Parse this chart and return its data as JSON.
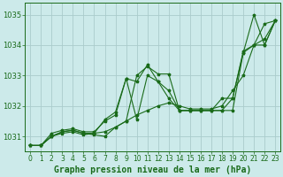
{
  "title": "Graphe pression niveau de la mer (hPa)",
  "xlim": [
    -0.5,
    23.5
  ],
  "ylim": [
    1030.5,
    1035.4
  ],
  "yticks": [
    1031,
    1032,
    1033,
    1034,
    1035
  ],
  "xticks": [
    0,
    1,
    2,
    3,
    4,
    5,
    6,
    7,
    8,
    9,
    10,
    11,
    12,
    13,
    14,
    15,
    16,
    17,
    18,
    19,
    20,
    21,
    22,
    23
  ],
  "background_color": "#cceaea",
  "grid_color": "#aacccc",
  "line_color": "#1a6b1a",
  "series1_x": [
    0,
    1,
    2,
    3,
    4,
    5,
    6,
    7,
    8,
    9,
    10,
    11,
    12,
    13,
    14,
    15,
    16,
    17,
    18,
    19,
    20,
    21,
    22,
    23
  ],
  "series1_y": [
    1030.7,
    1030.7,
    1031.0,
    1031.1,
    1031.15,
    1031.05,
    1031.1,
    1031.15,
    1031.3,
    1031.5,
    1031.7,
    1031.85,
    1032.0,
    1032.1,
    1032.0,
    1031.9,
    1031.9,
    1031.9,
    1032.0,
    1032.5,
    1033.0,
    1034.0,
    1034.7,
    1034.8
  ],
  "series2_x": [
    0,
    1,
    2,
    3,
    4,
    5,
    6,
    7,
    8,
    9,
    10,
    11,
    12,
    13,
    14,
    15,
    16,
    17,
    18,
    19,
    20,
    21,
    22,
    23
  ],
  "series2_y": [
    1030.7,
    1030.7,
    1031.0,
    1031.15,
    1031.2,
    1031.1,
    1031.1,
    1031.55,
    1031.8,
    1032.9,
    1032.8,
    1033.35,
    1032.8,
    1032.5,
    1031.85,
    1031.85,
    1031.85,
    1031.85,
    1031.85,
    1032.25,
    1033.75,
    1035.0,
    1034.0,
    1034.8
  ],
  "series3_x": [
    0,
    1,
    2,
    3,
    4,
    5,
    6,
    7,
    8,
    9,
    10,
    11,
    12,
    13,
    14,
    15,
    16,
    17,
    18,
    19,
    20,
    21,
    22,
    23
  ],
  "series3_y": [
    1030.7,
    1030.7,
    1031.0,
    1031.15,
    1031.2,
    1031.1,
    1031.05,
    1031.0,
    1031.3,
    1031.5,
    1033.0,
    1033.3,
    1033.05,
    1033.05,
    1031.85,
    1031.85,
    1031.85,
    1031.85,
    1031.85,
    1031.85,
    1033.75,
    1034.0,
    1034.0,
    1034.8
  ],
  "series4_x": [
    0,
    1,
    2,
    3,
    4,
    5,
    6,
    7,
    8,
    9,
    10,
    11,
    12,
    13,
    14,
    15,
    16,
    17,
    18,
    19,
    20,
    21,
    22,
    23
  ],
  "series4_y": [
    1030.7,
    1030.7,
    1031.1,
    1031.2,
    1031.25,
    1031.15,
    1031.15,
    1031.5,
    1031.7,
    1032.9,
    1031.55,
    1033.0,
    1032.8,
    1032.25,
    1031.85,
    1031.85,
    1031.85,
    1031.85,
    1032.25,
    1032.25,
    1033.8,
    1034.0,
    1034.2,
    1034.8
  ],
  "tick_fontsize": 5.5,
  "title_fontsize": 7.0
}
